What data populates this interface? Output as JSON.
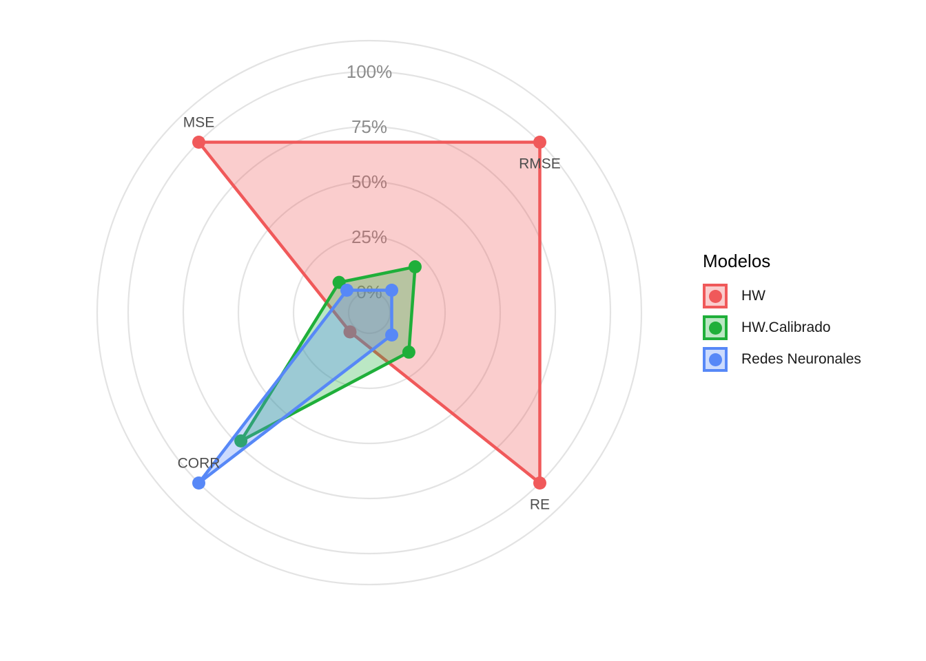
{
  "chart_data": {
    "type": "radar",
    "axes": [
      "MSE",
      "RMSE",
      "RE",
      "CORR"
    ],
    "ring_labels": [
      "0%",
      "25%",
      "50%",
      "75%",
      "100%"
    ],
    "ylim": [
      0,
      1
    ],
    "series": [
      {
        "name": "HW",
        "color": "#F0595A",
        "values": [
          1.0,
          1.0,
          1.0,
          0.03
        ]
      },
      {
        "name": "HW.Calibrado",
        "color": "#1FAF3A",
        "values": [
          0.1,
          0.2,
          0.16,
          0.73
        ]
      },
      {
        "name": "Redes Neuronales",
        "color": "#5788F7",
        "values": [
          0.05,
          0.05,
          0.05,
          1.0
        ]
      }
    ],
    "grid": true,
    "legend_position": "right"
  },
  "legend": {
    "title": "Modelos"
  }
}
